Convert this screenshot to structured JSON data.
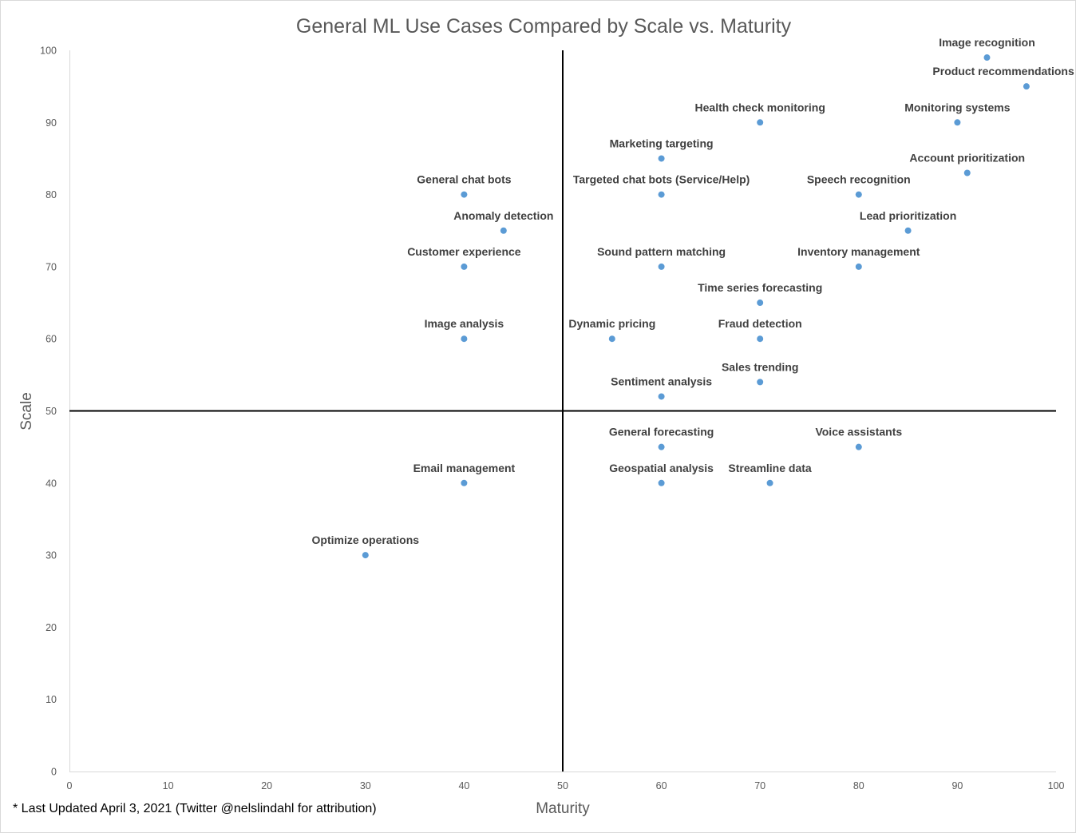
{
  "colors": {
    "point": "#5b9bd5",
    "axis_line": "#d9d9d9",
    "divider": "#000000"
  },
  "footnote": "* Last Updated April 3, 2021 (Twitter @nelslindahl for attribution)",
  "chart_data": {
    "type": "scatter",
    "title": "General ML Use Cases Compared by Scale vs. Maturity",
    "xlabel": "Maturity",
    "ylabel": "Scale",
    "xlim": [
      0,
      100
    ],
    "ylim": [
      0,
      100
    ],
    "x_ticks": [
      0,
      10,
      20,
      30,
      40,
      50,
      60,
      70,
      80,
      90,
      100
    ],
    "y_ticks": [
      0,
      10,
      20,
      30,
      40,
      50,
      60,
      70,
      80,
      90,
      100
    ],
    "grid": false,
    "legend": "none",
    "quadrant_lines": {
      "x": 50,
      "y": 50
    },
    "points": [
      {
        "label": "Image recognition",
        "x": 93,
        "y": 99
      },
      {
        "label": "Product recommendations",
        "x": 97,
        "y": 95
      },
      {
        "label": "Health check monitoring",
        "x": 70,
        "y": 90
      },
      {
        "label": "Monitoring systems",
        "x": 90,
        "y": 90
      },
      {
        "label": "Marketing targeting",
        "x": 60,
        "y": 85
      },
      {
        "label": "Account prioritization",
        "x": 91,
        "y": 83
      },
      {
        "label": "General chat bots",
        "x": 40,
        "y": 80
      },
      {
        "label": "Targeted chat bots (Service/Help)",
        "x": 60,
        "y": 80
      },
      {
        "label": "Speech recognition",
        "x": 80,
        "y": 80
      },
      {
        "label": "Anomaly detection",
        "x": 44,
        "y": 75
      },
      {
        "label": "Lead prioritization",
        "x": 85,
        "y": 75
      },
      {
        "label": "Customer experience",
        "x": 40,
        "y": 70
      },
      {
        "label": "Sound pattern matching",
        "x": 60,
        "y": 70
      },
      {
        "label": "Inventory management",
        "x": 80,
        "y": 70
      },
      {
        "label": "Time series forecasting",
        "x": 70,
        "y": 65
      },
      {
        "label": "Image analysis",
        "x": 40,
        "y": 60
      },
      {
        "label": "Dynamic pricing",
        "x": 55,
        "y": 60
      },
      {
        "label": "Fraud detection",
        "x": 70,
        "y": 60
      },
      {
        "label": "Sales trending",
        "x": 70,
        "y": 54
      },
      {
        "label": "Sentiment analysis",
        "x": 60,
        "y": 52
      },
      {
        "label": "General forecasting",
        "x": 60,
        "y": 45
      },
      {
        "label": "Voice assistants",
        "x": 80,
        "y": 45
      },
      {
        "label": "Email management",
        "x": 40,
        "y": 40
      },
      {
        "label": "Geospatial analysis",
        "x": 60,
        "y": 40
      },
      {
        "label": "Streamline data",
        "x": 71,
        "y": 40
      },
      {
        "label": "Optimize operations",
        "x": 30,
        "y": 30
      }
    ]
  }
}
